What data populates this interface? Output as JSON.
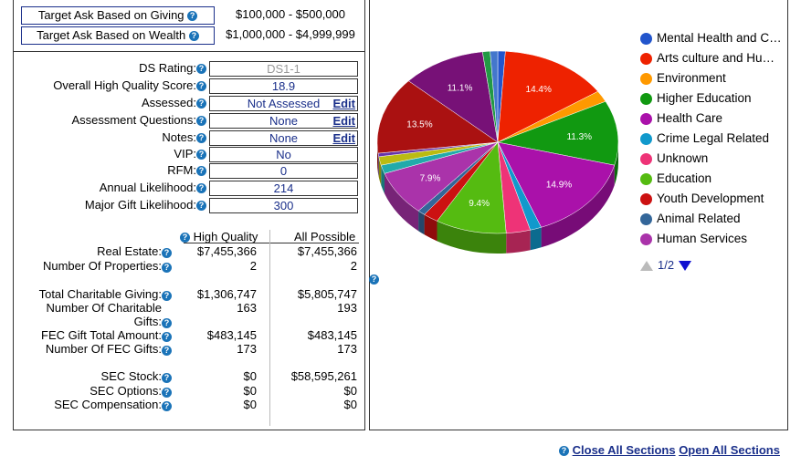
{
  "targets": {
    "giving": {
      "label": "Target Ask Based on Giving",
      "value": "$100,000 - $500,000"
    },
    "wealth": {
      "label": "Target Ask Based on Wealth",
      "value": "$1,000,000 - $4,999,999"
    }
  },
  "fields": [
    {
      "label": "DS Rating:",
      "value": "DS1-1",
      "edit": ""
    },
    {
      "label": "Overall High Quality Score:",
      "value": "18.9",
      "edit": ""
    },
    {
      "label": "Assessed:",
      "value": "Not Assessed",
      "edit": "Edit"
    },
    {
      "label": "Assessment Questions:",
      "value": "None",
      "edit": "Edit"
    },
    {
      "label": "Notes:",
      "value": "None",
      "edit": "Edit"
    },
    {
      "label": "VIP:",
      "value": "No",
      "edit": ""
    },
    {
      "label": "RFM:",
      "value": "0",
      "edit": ""
    },
    {
      "label": "Annual Likelihood:",
      "value": "214",
      "edit": ""
    },
    {
      "label": "Major Gift Likelihood:",
      "value": "300",
      "edit": ""
    }
  ],
  "stats": {
    "col_high_quality": "High Quality",
    "col_all_possible": "All Possible",
    "rows": [
      {
        "label": "Real Estate:",
        "hq": "$7,455,366",
        "all": "$7,455,366"
      },
      {
        "label": "Number Of Properties:",
        "hq": "2",
        "all": "2"
      },
      {
        "label": "Total Charitable Giving:",
        "hq": "$1,306,747",
        "all": "$5,805,747"
      },
      {
        "label": "Number Of Charitable Gifts:",
        "hq": "163",
        "all": "193"
      },
      {
        "label": "FEC Gift Total Amount:",
        "hq": "$483,145",
        "all": "$483,145"
      },
      {
        "label": "Number Of FEC Gifts:",
        "hq": "173",
        "all": "173"
      },
      {
        "label": "SEC Stock:",
        "hq": "$0",
        "all": "$58,595,261"
      },
      {
        "label": "SEC Options:",
        "hq": "$0",
        "all": "$0"
      },
      {
        "label": "SEC Compensation:",
        "hq": "$0",
        "all": "$0"
      }
    ]
  },
  "help_glyph": "?",
  "chart_data": {
    "type": "pie",
    "slices": [
      {
        "name": "Mental Health and C…",
        "value": 1.0,
        "color": "#2255cc",
        "label": ""
      },
      {
        "name": "Arts culture and Hu…",
        "value": 14.4,
        "color": "#ee2200",
        "label": "14.4%"
      },
      {
        "name": "Environment",
        "value": 2.0,
        "color": "#ff9900",
        "label": ""
      },
      {
        "name": "Higher Education",
        "value": 11.3,
        "color": "#119911",
        "label": "11.3%"
      },
      {
        "name": "Health Care",
        "value": 14.9,
        "color": "#aa11aa",
        "label": "14.9%"
      },
      {
        "name": "Crime Legal Related",
        "value": 1.5,
        "color": "#1199cc",
        "label": ""
      },
      {
        "name": "Unknown",
        "value": 3.2,
        "color": "#ee3377",
        "label": ""
      },
      {
        "name": "Education",
        "value": 9.4,
        "color": "#55bb11",
        "label": "9.4%"
      },
      {
        "name": "Youth Development",
        "value": 2.0,
        "color": "#cc1111",
        "label": ""
      },
      {
        "name": "Animal Related",
        "value": 1.0,
        "color": "#336699",
        "label": ""
      },
      {
        "name": "Human Services",
        "value": 7.9,
        "color": "#aa33aa",
        "label": "7.9%"
      },
      {
        "name": "",
        "value": 1.5,
        "color": "#22aaaa",
        "label": ""
      },
      {
        "name": "",
        "value": 1.5,
        "color": "#bbbb11",
        "label": ""
      },
      {
        "name": "",
        "value": 0.6,
        "color": "#6633aa",
        "label": ""
      },
      {
        "name": "",
        "value": 13.5,
        "color": "#aa1111",
        "label": "13.5%"
      },
      {
        "name": "",
        "value": 11.1,
        "color": "#771177",
        "label": "11.1%"
      },
      {
        "name": "",
        "value": 1.0,
        "color": "#229944",
        "label": ""
      },
      {
        "name": "",
        "value": 1.0,
        "color": "#4477cc",
        "label": ""
      }
    ]
  },
  "legend_items": [
    {
      "name": "Mental Health and C…",
      "color": "#2255cc"
    },
    {
      "name": "Arts culture and Hu…",
      "color": "#ee2200"
    },
    {
      "name": "Environment",
      "color": "#ff9900"
    },
    {
      "name": "Higher Education",
      "color": "#119911"
    },
    {
      "name": "Health Care",
      "color": "#aa11aa"
    },
    {
      "name": "Crime Legal Related",
      "color": "#1199cc"
    },
    {
      "name": "Unknown",
      "color": "#ee3377"
    },
    {
      "name": "Education",
      "color": "#55bb11"
    },
    {
      "name": "Youth Development",
      "color": "#cc1111"
    },
    {
      "name": "Animal Related",
      "color": "#336699"
    },
    {
      "name": "Human Services",
      "color": "#aa33aa"
    }
  ],
  "pager": {
    "text": "1/2"
  },
  "links": {
    "close_all": "Close All Sections",
    "open_all": "Open All Sections"
  }
}
